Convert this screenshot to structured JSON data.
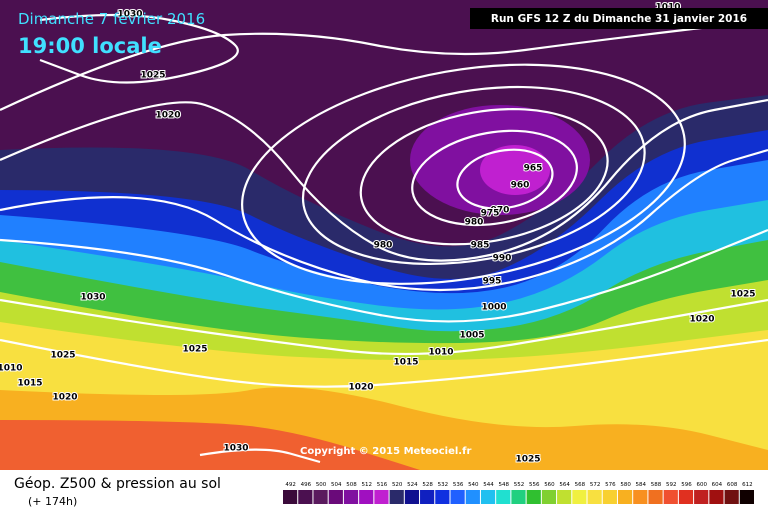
{
  "header": {
    "date": "Dimanche 7 fevrier 2016",
    "time": "19:00 locale",
    "run": "Run GFS 12 Z du Dimanche 31 janvier 2016"
  },
  "isobar_labels": [
    "1030",
    "1025",
    "1020",
    "965",
    "960",
    "970",
    "975",
    "980",
    "980",
    "985",
    "990",
    "995",
    "1000",
    "1005",
    "1010",
    "1015",
    "1020",
    "1025",
    "1030",
    "1025",
    "1010",
    "1015",
    "1020",
    "1030",
    "1025",
    "1010",
    "1025",
    "1020"
  ],
  "copyright": "Copyright © 2015 Meteociel.fr",
  "footer": {
    "title": "Géop. Z500 & pression au sol",
    "lead": "(+ 174h)"
  },
  "scale": {
    "labels": [
      492,
      496,
      500,
      504,
      508,
      512,
      516,
      520,
      524,
      528,
      532,
      536,
      540,
      544,
      548,
      552,
      556,
      560,
      564,
      568,
      572,
      576,
      580,
      584,
      588,
      592,
      596,
      600,
      604,
      608,
      612
    ],
    "colors": [
      "#3a0a3a",
      "#4b1050",
      "#5a1a5e",
      "#6a0a7a",
      "#8010a0",
      "#a010c0",
      "#c020d0",
      "#2a2a6a",
      "#101090",
      "#1020c0",
      "#1030e0",
      "#2060ff",
      "#2090ff",
      "#20c0f0",
      "#20e0d0",
      "#20d080",
      "#30c030",
      "#80d030",
      "#c0e030",
      "#f0f040",
      "#f8e040",
      "#f8d030",
      "#f8b020",
      "#f89020",
      "#f07020",
      "#f05030",
      "#e03020",
      "#c02020",
      "#a01010",
      "#701010",
      "#100000"
    ]
  }
}
